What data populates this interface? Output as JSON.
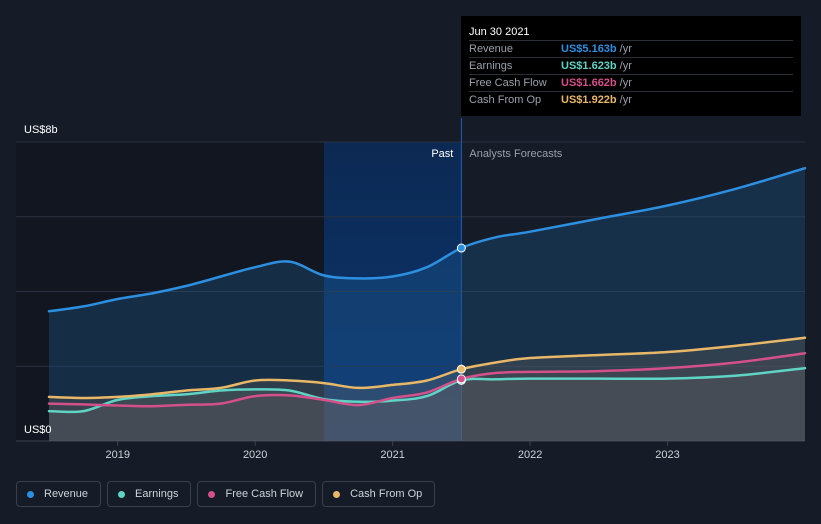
{
  "chart_data": {
    "type": "area",
    "y_top_label": "US$8b",
    "y_bottom_label": "US$0",
    "ylim": [
      0,
      8
    ],
    "xlim": [
      2018.5,
      2024
    ],
    "x_ticks": [
      {
        "value": 2019,
        "label": "2019"
      },
      {
        "value": 2020,
        "label": "2020"
      },
      {
        "value": 2021,
        "label": "2021"
      },
      {
        "value": 2022,
        "label": "2022"
      },
      {
        "value": 2023,
        "label": "2023"
      }
    ],
    "past_label": "Past",
    "forecast_label": "Analysts Forecasts",
    "divider_x": 2021.5,
    "highlight_start_x": 2020.5,
    "series": [
      {
        "name": "Revenue",
        "color": "#2d8fe0",
        "points": [
          [
            2018.5,
            3.47
          ],
          [
            2018.75,
            3.6
          ],
          [
            2019.0,
            3.8
          ],
          [
            2019.25,
            3.95
          ],
          [
            2019.5,
            4.15
          ],
          [
            2019.75,
            4.4
          ],
          [
            2020.0,
            4.65
          ],
          [
            2020.25,
            4.8
          ],
          [
            2020.5,
            4.43
          ],
          [
            2020.75,
            4.35
          ],
          [
            2021.0,
            4.4
          ],
          [
            2021.25,
            4.65
          ],
          [
            2021.5,
            5.163
          ],
          [
            2021.75,
            5.45
          ],
          [
            2022.0,
            5.6
          ],
          [
            2022.5,
            5.95
          ],
          [
            2023.0,
            6.3
          ],
          [
            2023.5,
            6.75
          ],
          [
            2024.0,
            7.3
          ]
        ]
      },
      {
        "name": "Earnings",
        "color": "#5fd3c4",
        "points": [
          [
            2018.5,
            0.8
          ],
          [
            2018.75,
            0.8
          ],
          [
            2019.0,
            1.1
          ],
          [
            2019.25,
            1.2
          ],
          [
            2019.5,
            1.25
          ],
          [
            2019.75,
            1.35
          ],
          [
            2020.0,
            1.38
          ],
          [
            2020.25,
            1.35
          ],
          [
            2020.5,
            1.12
          ],
          [
            2020.75,
            1.05
          ],
          [
            2021.0,
            1.08
          ],
          [
            2021.25,
            1.2
          ],
          [
            2021.5,
            1.623
          ],
          [
            2021.75,
            1.65
          ],
          [
            2022.0,
            1.67
          ],
          [
            2022.5,
            1.67
          ],
          [
            2023.0,
            1.67
          ],
          [
            2023.5,
            1.75
          ],
          [
            2024.0,
            1.95
          ]
        ]
      },
      {
        "name": "Free Cash Flow",
        "color": "#d4508a",
        "points": [
          [
            2018.5,
            1.0
          ],
          [
            2018.75,
            0.98
          ],
          [
            2019.0,
            0.95
          ],
          [
            2019.25,
            0.93
          ],
          [
            2019.5,
            0.97
          ],
          [
            2019.75,
            1.0
          ],
          [
            2020.0,
            1.2
          ],
          [
            2020.25,
            1.22
          ],
          [
            2020.5,
            1.1
          ],
          [
            2020.75,
            0.96
          ],
          [
            2021.0,
            1.15
          ],
          [
            2021.25,
            1.3
          ],
          [
            2021.5,
            1.662
          ],
          [
            2021.75,
            1.82
          ],
          [
            2022.0,
            1.85
          ],
          [
            2022.5,
            1.87
          ],
          [
            2023.0,
            1.95
          ],
          [
            2023.5,
            2.1
          ],
          [
            2024.0,
            2.35
          ]
        ]
      },
      {
        "name": "Cash From Op",
        "color": "#e8b868",
        "points": [
          [
            2018.5,
            1.18
          ],
          [
            2018.75,
            1.15
          ],
          [
            2019.0,
            1.18
          ],
          [
            2019.25,
            1.25
          ],
          [
            2019.5,
            1.35
          ],
          [
            2019.75,
            1.42
          ],
          [
            2020.0,
            1.62
          ],
          [
            2020.25,
            1.62
          ],
          [
            2020.5,
            1.55
          ],
          [
            2020.75,
            1.42
          ],
          [
            2021.0,
            1.5
          ],
          [
            2021.25,
            1.62
          ],
          [
            2021.5,
            1.922
          ],
          [
            2021.75,
            2.1
          ],
          [
            2022.0,
            2.22
          ],
          [
            2022.5,
            2.3
          ],
          [
            2023.0,
            2.38
          ],
          [
            2023.5,
            2.55
          ],
          [
            2024.0,
            2.76
          ]
        ]
      }
    ]
  },
  "tooltip": {
    "date": "Jun 30 2021",
    "rows": [
      {
        "label": "Revenue",
        "value": "US$5.163b",
        "unit": "/yr",
        "color": "#2d8fe0"
      },
      {
        "label": "Earnings",
        "value": "US$1.623b",
        "unit": "/yr",
        "color": "#5fd3c4"
      },
      {
        "label": "Free Cash Flow",
        "value": "US$1.662b",
        "unit": "/yr",
        "color": "#d4508a"
      },
      {
        "label": "Cash From Op",
        "value": "US$1.922b",
        "unit": "/yr",
        "color": "#e8b868"
      }
    ]
  },
  "legend": [
    {
      "label": "Revenue",
      "color": "#2d8fe0"
    },
    {
      "label": "Earnings",
      "color": "#5fd3c4"
    },
    {
      "label": "Free Cash Flow",
      "color": "#d4508a"
    },
    {
      "label": "Cash From Op",
      "color": "#e8b868"
    }
  ]
}
